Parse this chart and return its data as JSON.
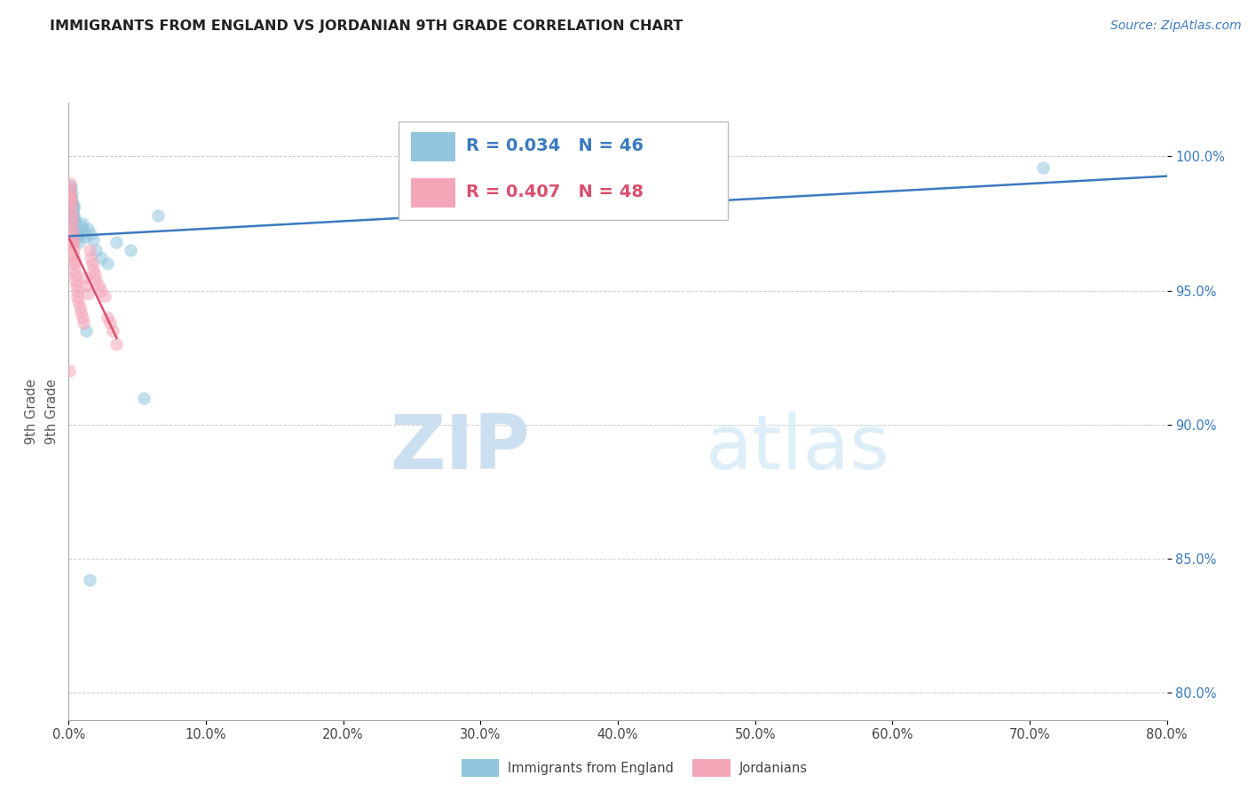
{
  "title": "IMMIGRANTS FROM ENGLAND VS JORDANIAN 9TH GRADE CORRELATION CHART",
  "source": "Source: ZipAtlas.com",
  "ylabel": "9th Grade",
  "xlim": [
    0,
    80
  ],
  "ylim": [
    79,
    102
  ],
  "yticks": [
    80,
    85,
    90,
    95,
    100
  ],
  "xticks": [
    0,
    10,
    20,
    30,
    40,
    50,
    60,
    70,
    80
  ],
  "R_blue": 0.034,
  "N_blue": 46,
  "R_pink": 0.407,
  "N_pink": 48,
  "blue_color": "#92c5de",
  "pink_color": "#f4a6b8",
  "blue_line_color": "#3a7abf",
  "pink_line_color": "#d94f6e",
  "legend_label_blue": "Immigrants from England",
  "legend_label_pink": "Jordanians",
  "watermark_zip": "ZIP",
  "watermark_atlas": "atlas",
  "blue_x": [
    0.08,
    0.1,
    0.12,
    0.14,
    0.16,
    0.18,
    0.2,
    0.22,
    0.24,
    0.26,
    0.28,
    0.3,
    0.32,
    0.34,
    0.36,
    0.38,
    0.4,
    0.42,
    0.44,
    0.46,
    0.48,
    0.5,
    0.55,
    0.6,
    0.65,
    0.7,
    0.75,
    0.8,
    0.9,
    1.0,
    1.1,
    1.2,
    1.4,
    1.6,
    1.8,
    2.0,
    2.4,
    2.8,
    3.5,
    4.5,
    5.5,
    6.5,
    36.0,
    71.0,
    1.3,
    1.5
  ],
  "blue_y": [
    98.5,
    98.8,
    98.6,
    98.7,
    98.9,
    98.4,
    98.5,
    98.6,
    98.3,
    98.2,
    98.1,
    98.0,
    97.9,
    97.8,
    98.2,
    98.1,
    97.6,
    97.5,
    97.7,
    97.4,
    97.3,
    97.2,
    97.0,
    97.3,
    97.1,
    97.0,
    96.8,
    97.2,
    97.4,
    97.5,
    97.2,
    97.0,
    97.3,
    97.1,
    96.9,
    96.5,
    96.2,
    96.0,
    96.8,
    96.5,
    91.0,
    97.8,
    98.5,
    99.6,
    93.5,
    84.2
  ],
  "pink_x": [
    0.05,
    0.08,
    0.1,
    0.12,
    0.14,
    0.16,
    0.18,
    0.2,
    0.22,
    0.24,
    0.26,
    0.28,
    0.3,
    0.32,
    0.34,
    0.36,
    0.38,
    0.4,
    0.42,
    0.45,
    0.48,
    0.5,
    0.55,
    0.6,
    0.65,
    0.7,
    0.8,
    0.9,
    1.0,
    1.1,
    1.2,
    1.3,
    1.4,
    1.5,
    1.6,
    1.7,
    1.8,
    1.9,
    2.0,
    2.2,
    2.4,
    2.6,
    2.8,
    3.0,
    3.2,
    3.5,
    0.09,
    0.15
  ],
  "pink_y": [
    92.0,
    98.6,
    99.0,
    98.8,
    98.5,
    98.3,
    98.2,
    98.0,
    97.8,
    97.6,
    97.4,
    97.2,
    97.0,
    96.8,
    96.7,
    96.5,
    96.3,
    96.1,
    96.0,
    95.8,
    95.6,
    95.4,
    95.2,
    95.0,
    94.8,
    94.6,
    94.4,
    94.2,
    94.0,
    93.8,
    95.5,
    95.2,
    94.9,
    96.5,
    96.2,
    96.0,
    95.8,
    95.6,
    95.4,
    95.2,
    95.0,
    94.8,
    94.0,
    93.8,
    93.5,
    93.0,
    98.5,
    96.8
  ]
}
